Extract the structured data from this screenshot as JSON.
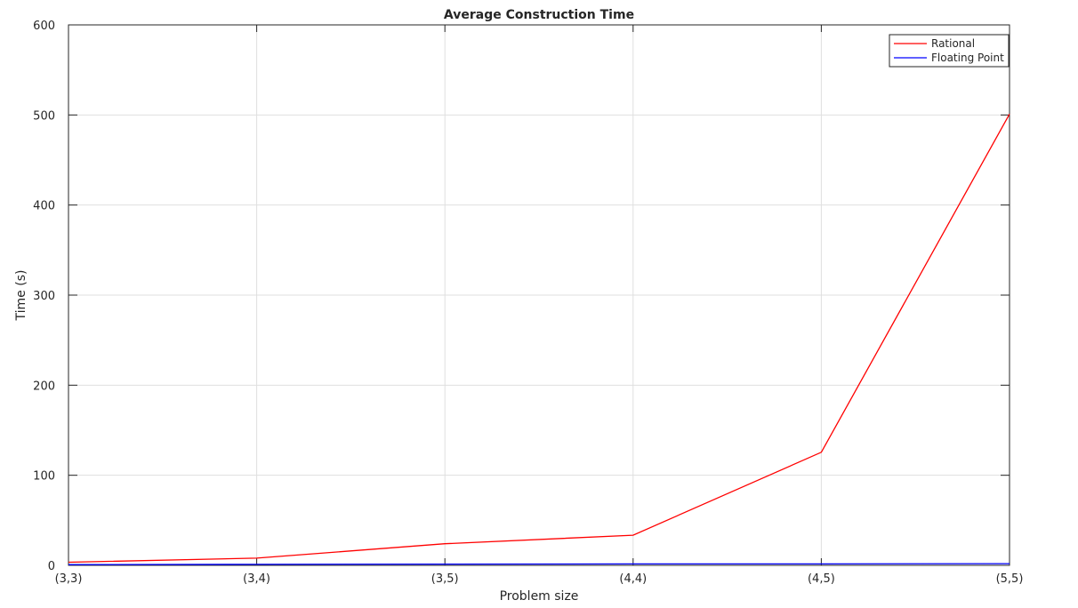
{
  "chart_data": {
    "type": "line",
    "title": "Average Construction Time",
    "xlabel": "Problem size",
    "ylabel": "Time (s)",
    "categories": [
      "(3,3)",
      "(3,4)",
      "(3,5)",
      "(4,4)",
      "(4,5)",
      "(5,5)"
    ],
    "ylim": [
      0,
      600
    ],
    "yticks": [
      0,
      100,
      200,
      300,
      400,
      500,
      600
    ],
    "grid": true,
    "legend_position": "top-right",
    "series": [
      {
        "name": "Rational",
        "color": "#ff0000",
        "values": [
          3.5,
          8,
          24,
          33.5,
          125.5,
          501
        ]
      },
      {
        "name": "Floating Point",
        "color": "#0000ff",
        "values": [
          0.8,
          1.1,
          1.4,
          1.6,
          1.6,
          1.9
        ]
      }
    ]
  }
}
